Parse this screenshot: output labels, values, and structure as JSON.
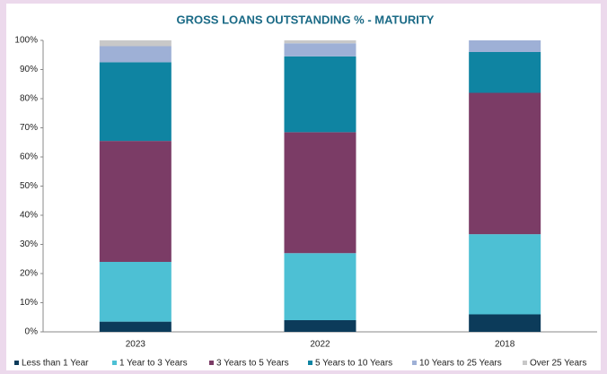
{
  "chart_data": {
    "type": "stacked_bar",
    "title": "GROSS LOANS OUTSTANDING % - MATURITY",
    "categories": [
      "2023",
      "2022",
      "2018"
    ],
    "series": [
      {
        "name": "Less than 1 Year",
        "color": "#0c3b5a",
        "values": [
          3.5,
          4,
          6
        ]
      },
      {
        "name": "1 Year to 3 Years",
        "color": "#4dc0d4",
        "values": [
          20.5,
          23,
          27.5
        ]
      },
      {
        "name": "3 Years to 5 Years",
        "color": "#7b3c66",
        "values": [
          41.5,
          41.5,
          48.5
        ]
      },
      {
        "name": "5 Years to 10 Years",
        "color": "#0f84a2",
        "values": [
          27,
          26,
          14
        ]
      },
      {
        "name": "10 Years to 25 Years",
        "color": "#9eb0d6",
        "values": [
          5.5,
          4.5,
          4
        ]
      },
      {
        "name": "Over 25 Years",
        "color": "#c8c8c8",
        "values": [
          2,
          1,
          0
        ]
      }
    ],
    "ylim": [
      0,
      100
    ],
    "yticks": [
      {
        "value": 0,
        "label": "0%"
      },
      {
        "value": 10,
        "label": "10%"
      },
      {
        "value": 20,
        "label": "20%"
      },
      {
        "value": 30,
        "label": "30%"
      },
      {
        "value": 40,
        "label": "40%"
      },
      {
        "value": 50,
        "label": "50%"
      },
      {
        "value": 60,
        "label": "60%"
      },
      {
        "value": 70,
        "label": "70%"
      },
      {
        "value": 80,
        "label": "80%"
      },
      {
        "value": 90,
        "label": "90%"
      },
      {
        "value": 100,
        "label": "100%"
      }
    ],
    "legend": "bottom"
  }
}
